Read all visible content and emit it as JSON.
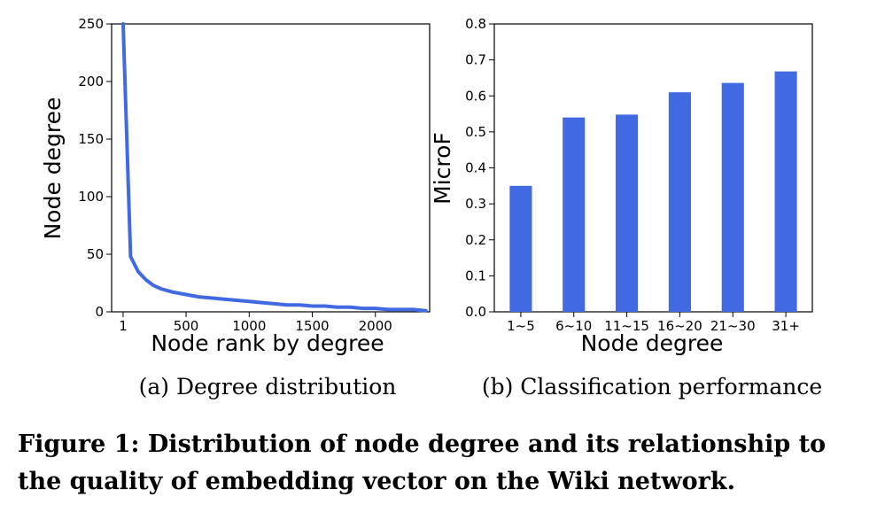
{
  "chart_data": [
    {
      "type": "line",
      "subcaption": "(a) Degree distribution",
      "xlabel": "Node rank by degree",
      "ylabel": "Node degree",
      "xlim": [
        -90,
        2430
      ],
      "ylim": [
        0,
        250
      ],
      "xticks": [
        1,
        500,
        1000,
        1500,
        2000
      ],
      "yticks": [
        0,
        50,
        100,
        150,
        200,
        250
      ],
      "series": [
        {
          "name": "degree",
          "color": "#4169e1",
          "x": [
            1,
            60,
            120,
            180,
            240,
            300,
            400,
            500,
            600,
            700,
            800,
            900,
            1000,
            1100,
            1200,
            1300,
            1400,
            1500,
            1600,
            1700,
            1800,
            1900,
            2000,
            2100,
            2200,
            2300,
            2400
          ],
          "y": [
            250,
            48,
            35,
            28,
            23,
            20,
            17,
            15,
            13,
            12,
            11,
            10,
            9,
            8,
            7,
            6,
            6,
            5,
            5,
            4,
            4,
            3,
            3,
            2,
            2,
            2,
            1
          ]
        }
      ]
    },
    {
      "type": "bar",
      "subcaption": "(b) Classification performance",
      "xlabel": "Node degree",
      "ylabel": "MicroF",
      "ylim": [
        0,
        0.8
      ],
      "yticks": [
        0.0,
        0.1,
        0.2,
        0.3,
        0.4,
        0.5,
        0.6,
        0.7,
        0.8
      ],
      "categories": [
        "1~5",
        "6~10",
        "11~15",
        "16~20",
        "21~30",
        "31+"
      ],
      "values": [
        0.35,
        0.54,
        0.548,
        0.61,
        0.636,
        0.668
      ],
      "color": "#4169e1"
    }
  ],
  "caption": {
    "line1": "Figure 1: Distribution of node degree and its relationship to",
    "line2": "the quality of embedding vector on the Wiki network."
  }
}
